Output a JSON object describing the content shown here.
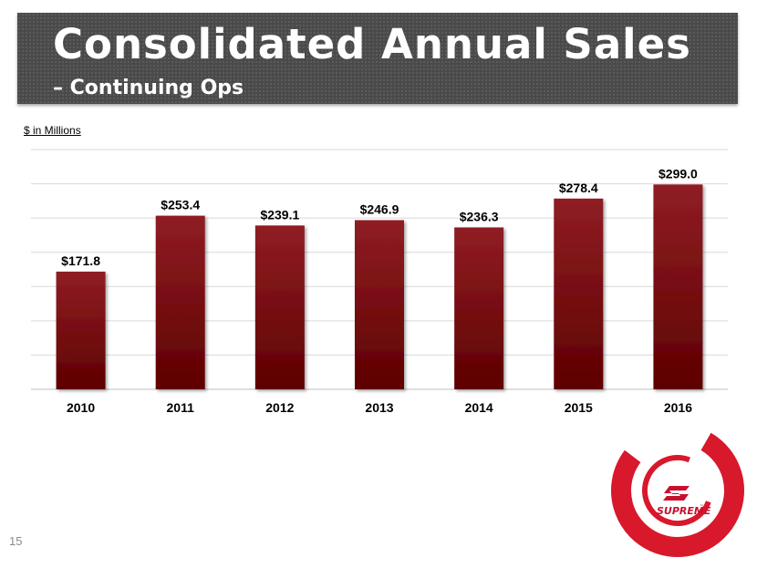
{
  "slide": {
    "title": "Consolidated Annual Sales",
    "subtitle": "– Continuing Ops",
    "units_note": "$ in Millions",
    "page_number": "15"
  },
  "logo": {
    "text": "SUPREME",
    "trademark": "™",
    "colors": {
      "ring": "#d8182b",
      "inner": "#ffffff"
    }
  },
  "colors": {
    "bar_top": "#8f1d24",
    "bar_bottom": "#5e0000",
    "title_band": "#4a4a4a"
  },
  "chart_data": {
    "type": "bar",
    "categories": [
      "2010",
      "2011",
      "2012",
      "2013",
      "2014",
      "2015",
      "2016"
    ],
    "values": [
      171.8,
      253.4,
      239.1,
      246.9,
      236.3,
      278.4,
      299.0
    ],
    "data_labels": [
      "$171.8",
      "$253.4",
      "$239.1",
      "$246.9",
      "$236.3",
      "$278.4",
      "$299.0"
    ],
    "ylim": [
      0,
      350
    ],
    "gridlines": true,
    "legend": "none",
    "y_tick_labels_visible": false
  }
}
